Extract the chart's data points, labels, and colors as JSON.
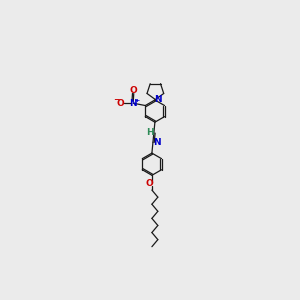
{
  "bg_color": "#ebebeb",
  "bond_color": "#1a1a1a",
  "n_color": "#0000cc",
  "o_color": "#cc0000",
  "h_color": "#2e8b57",
  "figsize": [
    3.0,
    3.0
  ],
  "dpi": 100,
  "xlim": [
    0,
    10
  ],
  "ylim": [
    0,
    10
  ]
}
